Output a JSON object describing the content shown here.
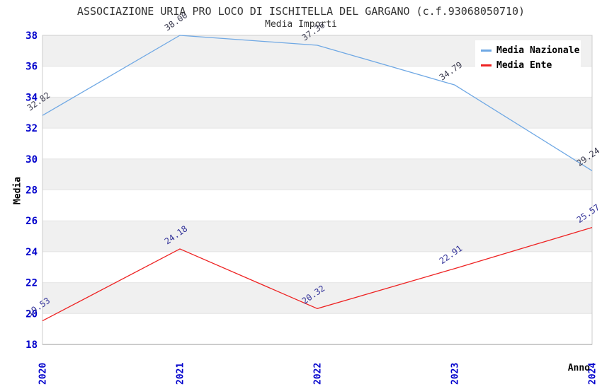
{
  "chart_data": {
    "type": "line",
    "title": "ASSOCIAZIONE URIA PRO LOCO DI ISCHITELLA DEL GARGANO (c.f.93068050710)",
    "subtitle": "Media Importi",
    "x": [
      "2020",
      "2021",
      "2022",
      "2023",
      "2024"
    ],
    "xlabel": "Anno",
    "ylabel": "Media",
    "ylim": [
      18,
      38
    ],
    "ytick_step": 2,
    "grid": "horizontal-alternating-bands",
    "legend_position": "top-right",
    "series": [
      {
        "name": "Media Nazionale",
        "color": "#6FA8E4",
        "label_color": "#3C3C50",
        "values": [
          32.82,
          38.0,
          37.36,
          34.79,
          29.24
        ]
      },
      {
        "name": "Media Ente",
        "color": "#EE2222",
        "label_color": "#333399",
        "values": [
          19.53,
          24.18,
          20.32,
          22.91,
          25.57
        ]
      }
    ]
  },
  "legend": {
    "items": [
      {
        "label": "Media Nazionale",
        "color": "#6FA8E4"
      },
      {
        "label": "Media Ente",
        "color": "#EE2222"
      }
    ]
  },
  "axes": {
    "tick_color": "#0000CC",
    "band_color": "#F0F0F0",
    "gridline_color": "#E4E4E4",
    "border_color": "#CCCCCC",
    "axis_line_color": "#999999"
  }
}
